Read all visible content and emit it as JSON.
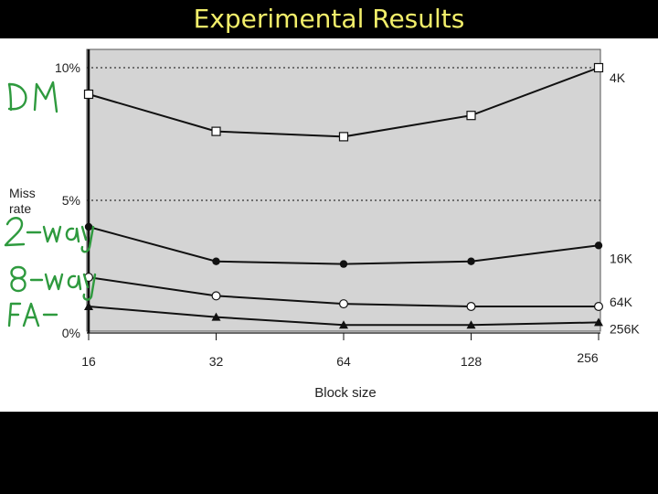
{
  "slide": {
    "title": "Experimental Results"
  },
  "chart_data": {
    "type": "line",
    "xlabel": "Block size",
    "ylabel": "Miss rate",
    "categories": [
      "16",
      "32",
      "64",
      "128",
      "256"
    ],
    "ylim": [
      0,
      10
    ],
    "yticks": [
      {
        "value": 0,
        "label": "0%"
      },
      {
        "value": 5,
        "label": "5%"
      },
      {
        "value": 10,
        "label": "10%"
      }
    ],
    "grid": "dotted horizontal lines at 5% and 10%",
    "plot_background": "#d4d4d4",
    "series": [
      {
        "name": "4K",
        "marker": "open-square",
        "values": [
          9.0,
          7.6,
          7.4,
          8.2,
          10.0
        ]
      },
      {
        "name": "16K",
        "marker": "filled-circle",
        "values": [
          4.0,
          2.7,
          2.6,
          2.7,
          3.3
        ]
      },
      {
        "name": "64K",
        "marker": "open-circle",
        "values": [
          2.1,
          1.4,
          1.1,
          1.0,
          1.0
        ]
      },
      {
        "name": "256K",
        "marker": "filled-triangle",
        "values": [
          1.0,
          0.6,
          0.3,
          0.3,
          0.4
        ]
      }
    ]
  },
  "annotations": {
    "color": "#2e9a3e",
    "items": [
      "DM",
      "2-way",
      "8-way",
      "FA"
    ]
  }
}
